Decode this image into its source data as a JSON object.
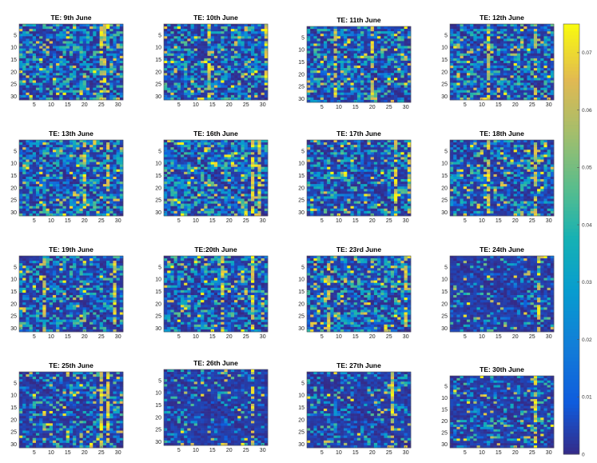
{
  "chart_data": {
    "type": "heatmap",
    "colormap": "parula",
    "color_range": [
      0,
      0.075
    ],
    "grid_size": [
      31,
      31
    ],
    "x_ticks": [
      5,
      10,
      15,
      20,
      25,
      30
    ],
    "y_ticks": [
      5,
      10,
      15,
      20,
      25,
      30
    ],
    "colorbar": {
      "ticks": [
        "0",
        "0.01",
        "0.02",
        "0.03",
        "0.04",
        "0.05",
        "0.06",
        "0.07"
      ],
      "values": [
        0,
        0.01,
        0.02,
        0.03,
        0.04,
        0.05,
        0.06,
        0.07
      ]
    },
    "panels": [
      {
        "title": "TE: 9th June",
        "seed": 9,
        "density": 0.55,
        "hot_cols": [
          25,
          26
        ]
      },
      {
        "title": "TE: 10th June",
        "seed": 10,
        "density": 0.5,
        "hot_cols": [
          14,
          31
        ]
      },
      {
        "title": "TE: 11th June",
        "seed": 11,
        "density": 0.5,
        "hot_cols": [
          9,
          20
        ]
      },
      {
        "title": "TE: 12th June",
        "seed": 12,
        "density": 0.5,
        "hot_cols": [
          12,
          26
        ]
      },
      {
        "title": "TE: 13th June",
        "seed": 13,
        "density": 0.55,
        "hot_cols": [
          20,
          27
        ]
      },
      {
        "title": "TE: 16th June",
        "seed": 16,
        "density": 0.55,
        "hot_cols": [
          27,
          29
        ]
      },
      {
        "title": "TE: 17th June",
        "seed": 17,
        "density": 0.5,
        "hot_cols": [
          27,
          31
        ]
      },
      {
        "title": "TE: 18th June",
        "seed": 18,
        "density": 0.45,
        "hot_cols": [
          12,
          26
        ]
      },
      {
        "title": "TE: 19th June",
        "seed": 19,
        "density": 0.45,
        "hot_cols": [
          8,
          29
        ]
      },
      {
        "title": "TE:20th June",
        "seed": 20,
        "density": 0.5,
        "hot_cols": [
          18,
          27
        ]
      },
      {
        "title": "TE: 23rd June",
        "seed": 23,
        "density": 0.55,
        "hot_cols": [
          7,
          30
        ]
      },
      {
        "title": "TE: 24th June",
        "seed": 24,
        "density": 0.2,
        "hot_cols": [
          27
        ]
      },
      {
        "title": "TE: 25th June",
        "seed": 25,
        "density": 0.35,
        "hot_cols": [
          25,
          27
        ]
      },
      {
        "title": "TE: 26th June",
        "seed": 26,
        "density": 0.2,
        "hot_cols": [
          27
        ]
      },
      {
        "title": "TE: 27th June",
        "seed": 27,
        "density": 0.25,
        "hot_cols": [
          26
        ]
      },
      {
        "title": "TE: 30th June",
        "seed": 30,
        "density": 0.3,
        "hot_cols": [
          26
        ]
      }
    ]
  }
}
